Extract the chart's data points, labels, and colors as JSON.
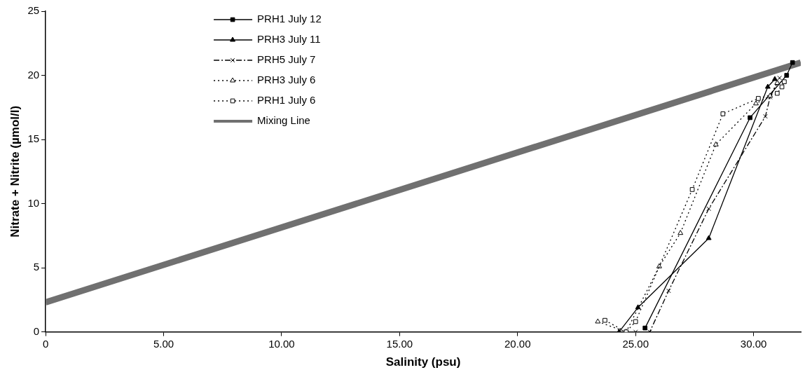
{
  "chart_data": {
    "type": "line",
    "xlabel": "Salinity (psu)",
    "ylabel": "Nitrate + Nitrite (µmol/l)",
    "xlim": [
      0,
      32
    ],
    "ylim": [
      0,
      25
    ],
    "xticks": [
      0,
      {
        "value": 5,
        "label": "5.00"
      },
      {
        "value": 10,
        "label": "10.00"
      },
      {
        "value": 15,
        "label": "15.00"
      },
      {
        "value": 20,
        "label": "20.00"
      },
      {
        "value": 25,
        "label": "25.00"
      },
      {
        "value": 30,
        "label": "30.00"
      }
    ],
    "yticks": [
      0,
      5,
      10,
      15,
      20,
      25
    ],
    "grid": false,
    "legend": "top left",
    "series": [
      {
        "name": "PRH1 July 12",
        "color": "#000000",
        "marker": "square",
        "line_style": "solid",
        "x": [
          25.4,
          29.85,
          31.4,
          31.65
        ],
        "values": [
          0.3,
          16.7,
          20.0,
          21.0
        ]
      },
      {
        "name": "PRH3 July 11",
        "color": "#000000",
        "marker": "triangle",
        "line_style": "solid",
        "x": [
          24.3,
          25.1,
          28.1,
          30.6,
          30.9
        ],
        "values": [
          0,
          1.9,
          7.3,
          19.1,
          19.7
        ]
      },
      {
        "name": "PRH5 July 7",
        "color": "#000000",
        "marker": "cross",
        "line_style": "dashed",
        "x": [
          25.0,
          25.6,
          26.4,
          28.1,
          30.5,
          30.7,
          31.1
        ],
        "values": [
          0,
          0,
          3.2,
          9.6,
          16.8,
          18.3,
          19.8
        ]
      },
      {
        "name": "PRH3 July 6",
        "color": "#000000",
        "marker": "triangle",
        "line_style": "dotted",
        "x": [
          23.4,
          24.6,
          26.0,
          26.9,
          28.4,
          30.1,
          30.7,
          31.0
        ],
        "values": [
          0.8,
          0,
          5.1,
          7.7,
          14.6,
          17.8,
          18.4,
          19.4
        ]
      },
      {
        "name": "PRH1 July 6",
        "color": "#000000",
        "marker": "square",
        "line_style": "dotted",
        "x": [
          23.7,
          24.6,
          25.0,
          27.4,
          28.7,
          30.2,
          31.0,
          31.2,
          31.3
        ],
        "values": [
          0.9,
          0,
          0.8,
          11.1,
          17.0,
          18.2,
          18.6,
          19.1,
          19.5
        ]
      },
      {
        "name": "Mixing Line",
        "color": "#707070",
        "marker": "none",
        "line_style": "solid",
        "x": [
          0,
          32
        ],
        "values": [
          2.3,
          21.0
        ]
      }
    ]
  }
}
